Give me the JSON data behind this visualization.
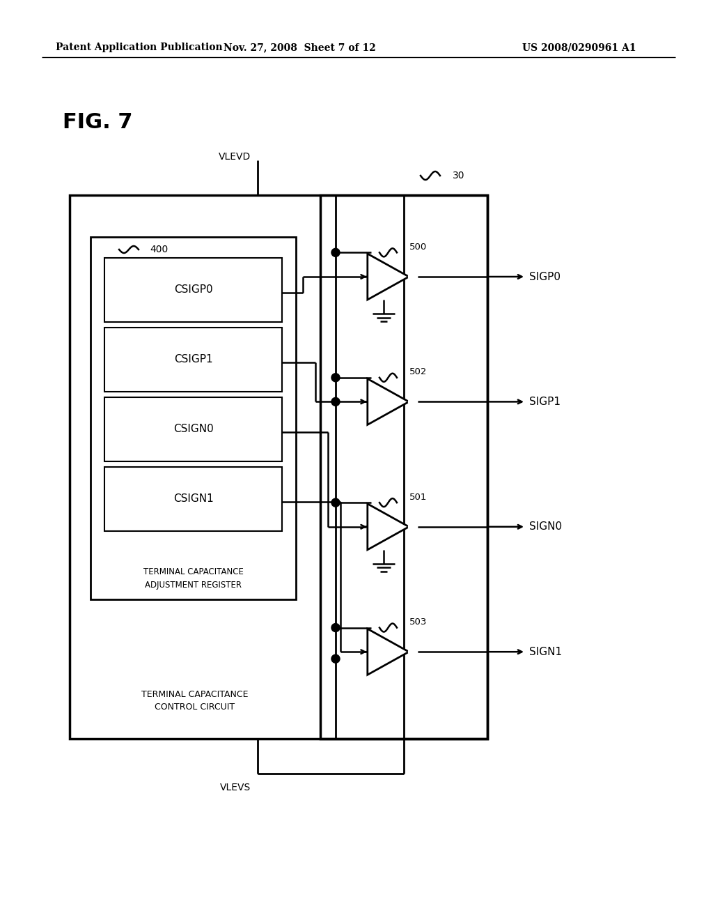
{
  "bg_color": "#ffffff",
  "text_color": "#000000",
  "line_color": "#000000",
  "header_left": "Patent Application Publication",
  "header_mid": "Nov. 27, 2008  Sheet 7 of 12",
  "header_right": "US 2008/0290961 A1",
  "fig_label": "FIG. 7",
  "register_labels": [
    "CSIGP0",
    "CSIGP1",
    "CSIGN0",
    "CSIGN1"
  ],
  "outer_label": "TERMINAL CAPACITANCE\nCONTROL CIRCUIT",
  "inner_label": "TERMINAL CAPACITANCE\nADJUSTMENT REGISTER",
  "vlevd_label": "VLEVD",
  "vlevs_label": "VLEVS",
  "buf_labels": [
    "500",
    "502",
    "501",
    "503"
  ],
  "out_labels": [
    "SIGP0",
    "SIGP1",
    "SIGN0",
    "SIGN1"
  ],
  "ref_label_400": "400",
  "ref_label_30": "30"
}
